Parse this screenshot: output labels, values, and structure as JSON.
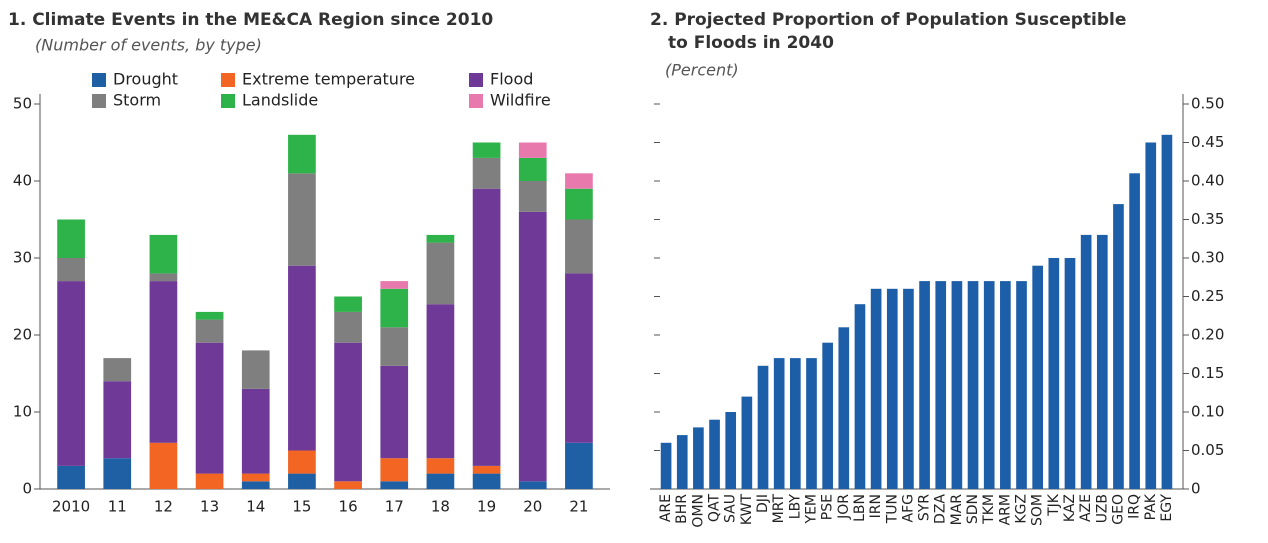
{
  "chart_data": [
    {
      "type": "bar",
      "title": "1. Climate Events in the ME&CA Region since 2010",
      "subtitle": "(Number of events, by type)",
      "categories": [
        "2010",
        "11",
        "12",
        "13",
        "14",
        "15",
        "16",
        "17",
        "18",
        "19",
        "20",
        "21"
      ],
      "stacked": true,
      "y_axis_position": "left",
      "legend": "top",
      "series": [
        {
          "name": "Drought",
          "color": "#1f5fa3",
          "values": [
            3,
            4,
            0,
            0,
            1,
            2,
            0,
            1,
            2,
            2,
            1,
            6
          ]
        },
        {
          "name": "Extreme temperature",
          "color": "#f26522",
          "values": [
            0,
            0,
            6,
            2,
            1,
            3,
            1,
            3,
            2,
            1,
            0,
            0
          ]
        },
        {
          "name": "Flood",
          "color": "#6f3a97",
          "values": [
            24,
            10,
            21,
            17,
            11,
            24,
            18,
            12,
            20,
            36,
            35,
            22
          ]
        },
        {
          "name": "Storm",
          "color": "#7f7f80",
          "values": [
            3,
            3,
            1,
            3,
            5,
            12,
            4,
            5,
            8,
            4,
            4,
            7
          ]
        },
        {
          "name": "Landslide",
          "color": "#2db34a",
          "values": [
            5,
            0,
            5,
            1,
            0,
            5,
            2,
            5,
            1,
            2,
            3,
            4
          ]
        },
        {
          "name": "Wildfire",
          "color": "#e879ad",
          "values": [
            0,
            0,
            0,
            0,
            0,
            0,
            0,
            1,
            0,
            0,
            2,
            2
          ]
        }
      ],
      "ylim": [
        0,
        50
      ],
      "yticks": [
        0,
        10,
        20,
        30,
        40,
        50
      ]
    },
    {
      "type": "bar",
      "title": [
        "2. Projected Proportion of Population Susceptible",
        "to Floods in 2040"
      ],
      "subtitle": "(Percent)",
      "categories": [
        "ARE",
        "BHR",
        "OMN",
        "QAT",
        "SAU",
        "KWT",
        "DJI",
        "MRT",
        "LBY",
        "YEM",
        "PSE",
        "JOR",
        "LBN",
        "IRN",
        "TUN",
        "AFG",
        "SYR",
        "DZA",
        "MAR",
        "SDN",
        "TKM",
        "ARM",
        "KGZ",
        "SOM",
        "TJK",
        "KAZ",
        "AZE",
        "UZB",
        "GEO",
        "IRQ",
        "PAK",
        "EGY"
      ],
      "values": [
        0.06,
        0.07,
        0.08,
        0.09,
        0.1,
        0.12,
        0.16,
        0.17,
        0.17,
        0.17,
        0.19,
        0.21,
        0.24,
        0.26,
        0.26,
        0.26,
        0.27,
        0.27,
        0.27,
        0.27,
        0.27,
        0.27,
        0.27,
        0.29,
        0.3,
        0.3,
        0.33,
        0.33,
        0.37,
        0.41,
        0.45,
        0.46
      ],
      "color": "#1d5ea8",
      "y_axis_position": "right",
      "ylim": [
        0,
        0.5
      ],
      "yticks": [
        0,
        0.05,
        {
          "value": 0.1,
          "label": "0.10"
        },
        0.15,
        {
          "value": 0.2,
          "label": "0.20"
        },
        0.25,
        {
          "value": 0.3,
          "label": "0.30"
        },
        0.35,
        {
          "value": 0.4,
          "label": "0.40"
        },
        0.45,
        {
          "value": 0.5,
          "label": "0.50"
        }
      ]
    }
  ]
}
